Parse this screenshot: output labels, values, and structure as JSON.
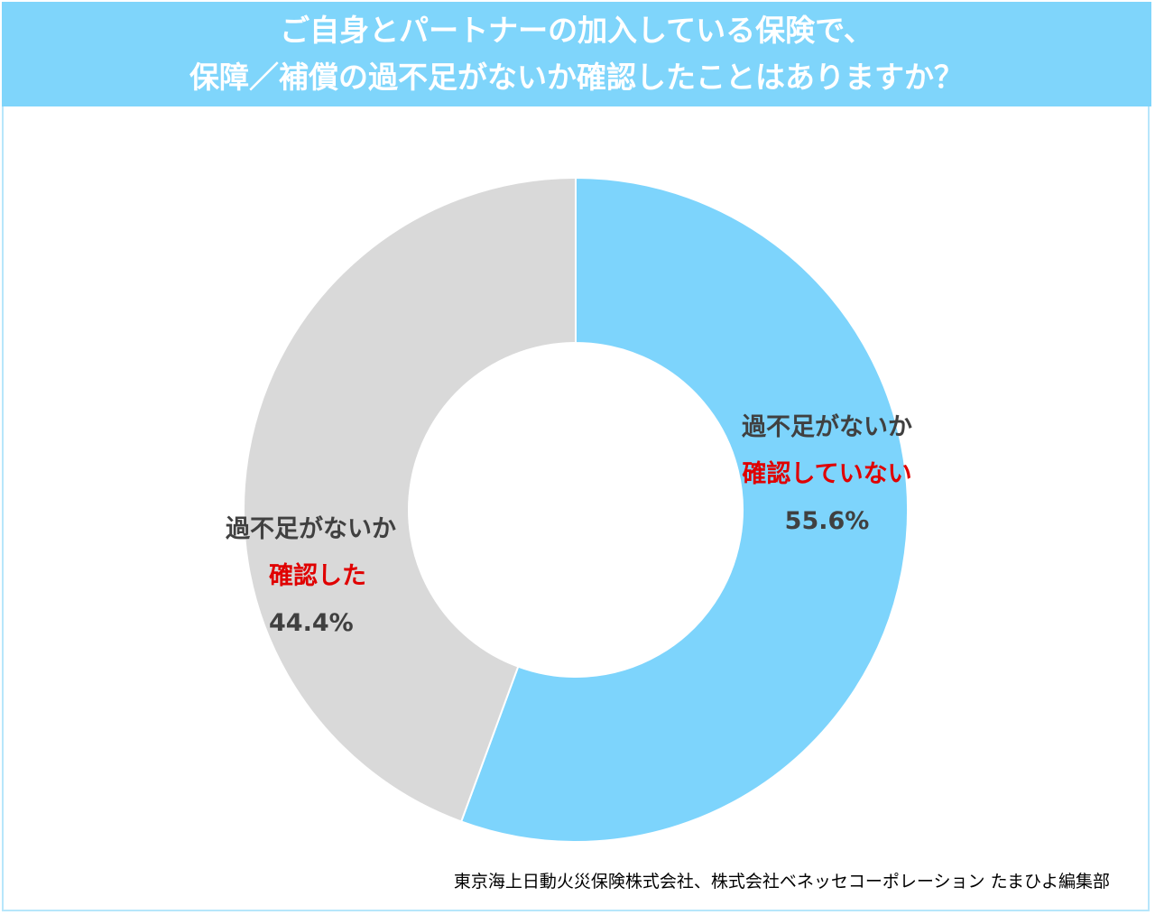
{
  "title": {
    "line1": "ご自身とパートナーの加入している保険で、",
    "line2": "保障／補償の過不足がないか確認したことはありますか？"
  },
  "chart_data": {
    "type": "pie",
    "donut": true,
    "start": "top",
    "direction": "clockwise",
    "slices": [
      {
        "label_line1": "過不足がないか",
        "label_line2": "確認していない",
        "value": 55.6,
        "value_label": "55.6%",
        "color": "#7dd4fc"
      },
      {
        "label_line1": "過不足がないか",
        "label_line2": "確認した",
        "value": 44.4,
        "value_label": "44.4%",
        "color": "#d9d9d9"
      }
    ]
  },
  "source": "東京海上日動火災保険株式会社、株式会社ベネッセコーポレーション たまひよ編集部",
  "colors": {
    "header_bg": "#7fd5fb",
    "highlight_text": "#e00000"
  }
}
